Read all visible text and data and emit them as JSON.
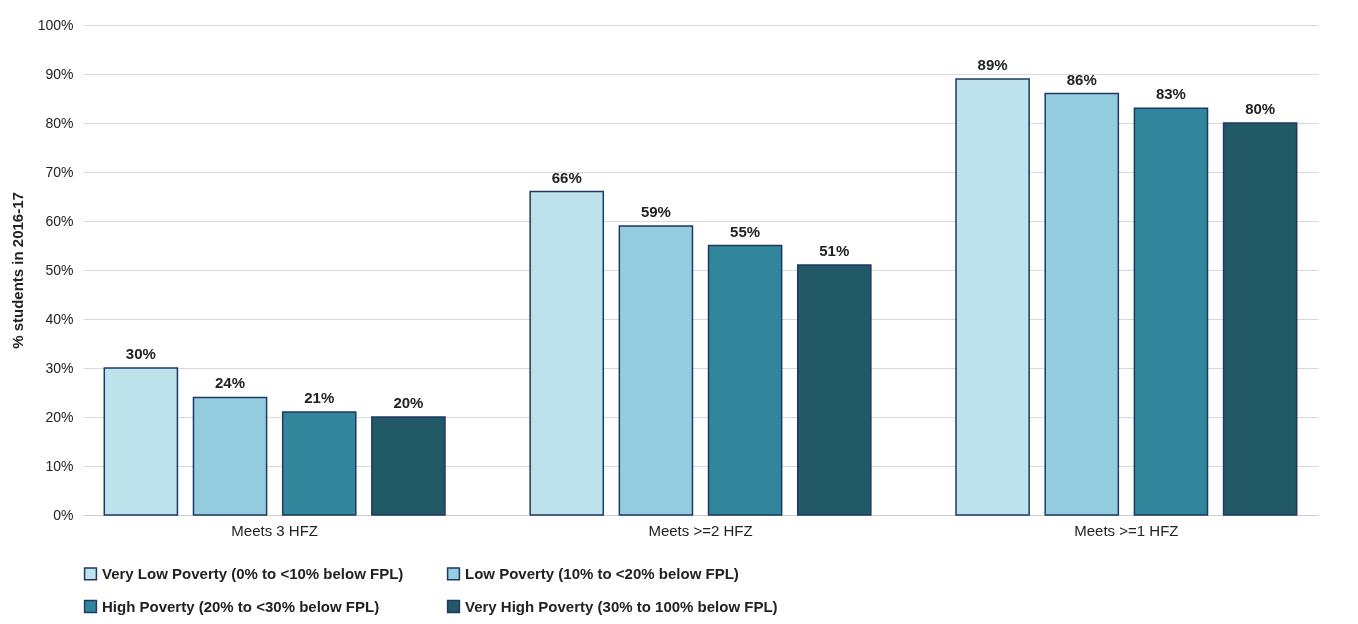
{
  "chart_data": {
    "type": "bar",
    "ylabel": "% students in 2016-17",
    "categories": [
      "Meets 3 HFZ",
      "Meets >=2 HFZ",
      "Meets >=1 HFZ"
    ],
    "series": [
      {
        "name": "Very Low Poverty (0% to <10% below FPL)",
        "color": "#bde2ec",
        "values": [
          30,
          66,
          89
        ],
        "value_labels": [
          "30%",
          "66%",
          "89%"
        ]
      },
      {
        "name": "Low Poverty (10% to <20% below FPL)",
        "color": "#93cddf",
        "values": [
          24,
          59,
          86
        ],
        "value_labels": [
          "24%",
          "59%",
          "86%"
        ]
      },
      {
        "name": "High Poverty (20% to <30% below FPL)",
        "color": "#31869b",
        "values": [
          21,
          55,
          83
        ],
        "value_labels": [
          "21%",
          "55%",
          "83%"
        ]
      },
      {
        "name": "Very High Poverty (30% to 100% below FPL)",
        "color": "#215967",
        "values": [
          20,
          51,
          80
        ],
        "value_labels": [
          "20%",
          "51%",
          "80%"
        ]
      }
    ],
    "ylim": [
      0,
      100
    ],
    "yticks": [
      {
        "value": 0,
        "label": "0%"
      },
      {
        "value": 10,
        "label": "10%"
      },
      {
        "value": 20,
        "label": "20%"
      },
      {
        "value": 30,
        "label": "30%"
      },
      {
        "value": 40,
        "label": "40%"
      },
      {
        "value": 50,
        "label": "50%"
      },
      {
        "value": 60,
        "label": "60%"
      },
      {
        "value": 70,
        "label": "70%"
      },
      {
        "value": 80,
        "label": "80%"
      },
      {
        "value": 90,
        "label": "90%"
      },
      {
        "value": 100,
        "label": "100%"
      }
    ],
    "grid": "y",
    "legend": "bottom"
  }
}
